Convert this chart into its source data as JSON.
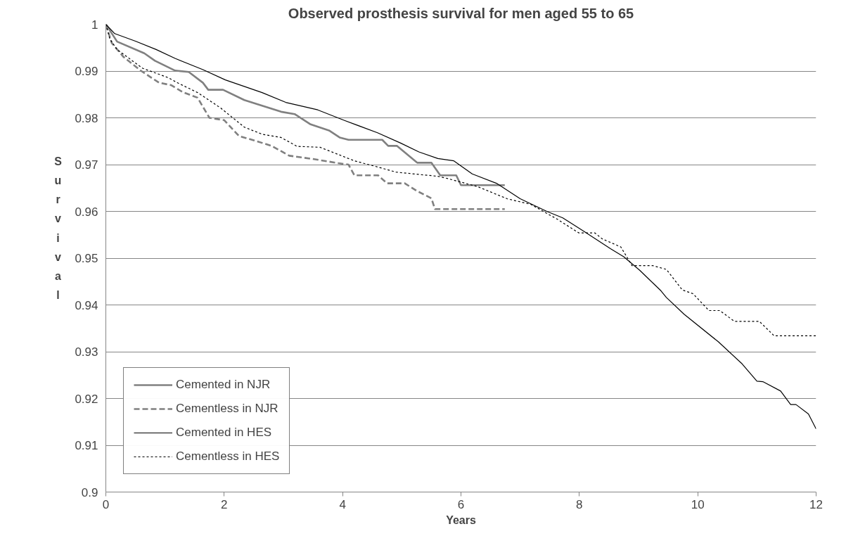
{
  "chart_data": {
    "type": "line",
    "title": "Observed prosthesis survival for men aged 55 to 65",
    "xlabel": "Years",
    "ylabel": "Survival",
    "xlim": [
      0,
      12
    ],
    "xticks": [
      0,
      2,
      4,
      6,
      8,
      10,
      12
    ],
    "ylim": [
      0.9,
      1
    ],
    "yticks": [
      0.9,
      0.91,
      0.92,
      0.93,
      0.94,
      0.95,
      0.96,
      0.97,
      0.98,
      0.99,
      1
    ],
    "grid": "y",
    "legend": "bottom left",
    "series": [
      {
        "name": "Cemented in NJR",
        "color": "#808080",
        "line_style": "solid",
        "x": [
          0,
          0.19,
          0.65,
          0.83,
          1.17,
          1.4,
          1.64,
          1.73,
          1.98,
          2.34,
          2.64,
          2.96,
          3.19,
          3.46,
          3.77,
          3.95,
          4.1,
          4.67,
          4.77,
          4.92,
          5.26,
          5.5,
          5.65,
          5.92,
          6.0,
          6.74
        ],
        "values": [
          1,
          0.9963,
          0.9938,
          0.9922,
          0.9901,
          0.9898,
          0.9875,
          0.986,
          0.986,
          0.9838,
          0.9826,
          0.9813,
          0.9808,
          0.9786,
          0.9773,
          0.9758,
          0.9753,
          0.9753,
          0.974,
          0.974,
          0.9704,
          0.9704,
          0.9677,
          0.9677,
          0.9656,
          0.9656
        ]
      },
      {
        "name": "Cementless in NJR",
        "color": "#808080",
        "line_style": "dashed",
        "x": [
          0,
          0.1,
          0.3,
          0.6,
          0.9,
          1.1,
          1.3,
          1.55,
          1.75,
          2.0,
          2.25,
          2.5,
          2.8,
          3.1,
          3.5,
          3.93,
          4.1,
          4.2,
          4.6,
          4.75,
          5.05,
          5.25,
          5.5,
          5.56,
          6.74
        ],
        "values": [
          1,
          0.996,
          0.993,
          0.99,
          0.9875,
          0.987,
          0.9855,
          0.9843,
          0.98,
          0.9795,
          0.9761,
          0.9752,
          0.974,
          0.9719,
          0.9712,
          0.9703,
          0.97,
          0.9677,
          0.9677,
          0.966,
          0.966,
          0.9644,
          0.9628,
          0.9605,
          0.9605
        ]
      },
      {
        "name": "Cemented in HES",
        "color": "#000000",
        "line_style": "solid",
        "x": [
          0,
          0.15,
          0.5,
          0.85,
          1.17,
          1.64,
          2.02,
          2.64,
          3.04,
          3.58,
          4.04,
          4.59,
          4.98,
          5.29,
          5.61,
          5.88,
          6.19,
          6.6,
          7.0,
          7.45,
          7.72,
          8.07,
          8.53,
          8.75,
          9.02,
          9.38,
          9.47,
          9.77,
          10.35,
          10.75,
          11.0,
          11.1,
          11.4,
          11.57,
          11.66,
          11.87,
          12.0
        ],
        "values": [
          1,
          0.998,
          0.9964,
          0.9946,
          0.9927,
          0.9903,
          0.9881,
          0.9854,
          0.9833,
          0.9817,
          0.9794,
          0.9768,
          0.9746,
          0.9727,
          0.9713,
          0.9708,
          0.968,
          0.966,
          0.9627,
          0.96,
          0.9586,
          0.9558,
          0.952,
          0.9503,
          0.9474,
          0.943,
          0.9416,
          0.938,
          0.9321,
          0.9274,
          0.9237,
          0.9236,
          0.9216,
          0.9187,
          0.9187,
          0.9167,
          0.9135
        ]
      },
      {
        "name": "Cementless in HES",
        "color": "#000000",
        "line_style": "dotted",
        "x": [
          0,
          0.07,
          0.19,
          0.62,
          1.05,
          1.24,
          1.55,
          1.94,
          2.34,
          2.64,
          2.96,
          3.23,
          3.62,
          4.2,
          4.59,
          4.9,
          5.29,
          5.61,
          5.78,
          6.28,
          6.78,
          7.18,
          7.63,
          7.99,
          8.26,
          8.39,
          8.7,
          8.89,
          9.24,
          9.47,
          9.74,
          9.92,
          10.19,
          10.37,
          10.62,
          11.04,
          11.29,
          12.0
        ],
        "values": [
          1,
          0.9968,
          0.9946,
          0.9906,
          0.9886,
          0.9873,
          0.9854,
          0.9821,
          0.978,
          0.9765,
          0.9758,
          0.9739,
          0.9737,
          0.9708,
          0.9695,
          0.9684,
          0.9679,
          0.9675,
          0.967,
          0.9653,
          0.9627,
          0.9615,
          0.9583,
          0.9554,
          0.9554,
          0.9541,
          0.9524,
          0.9484,
          0.9484,
          0.9476,
          0.9432,
          0.9424,
          0.9388,
          0.9388,
          0.9365,
          0.9365,
          0.9334,
          0.9334
        ]
      }
    ]
  }
}
